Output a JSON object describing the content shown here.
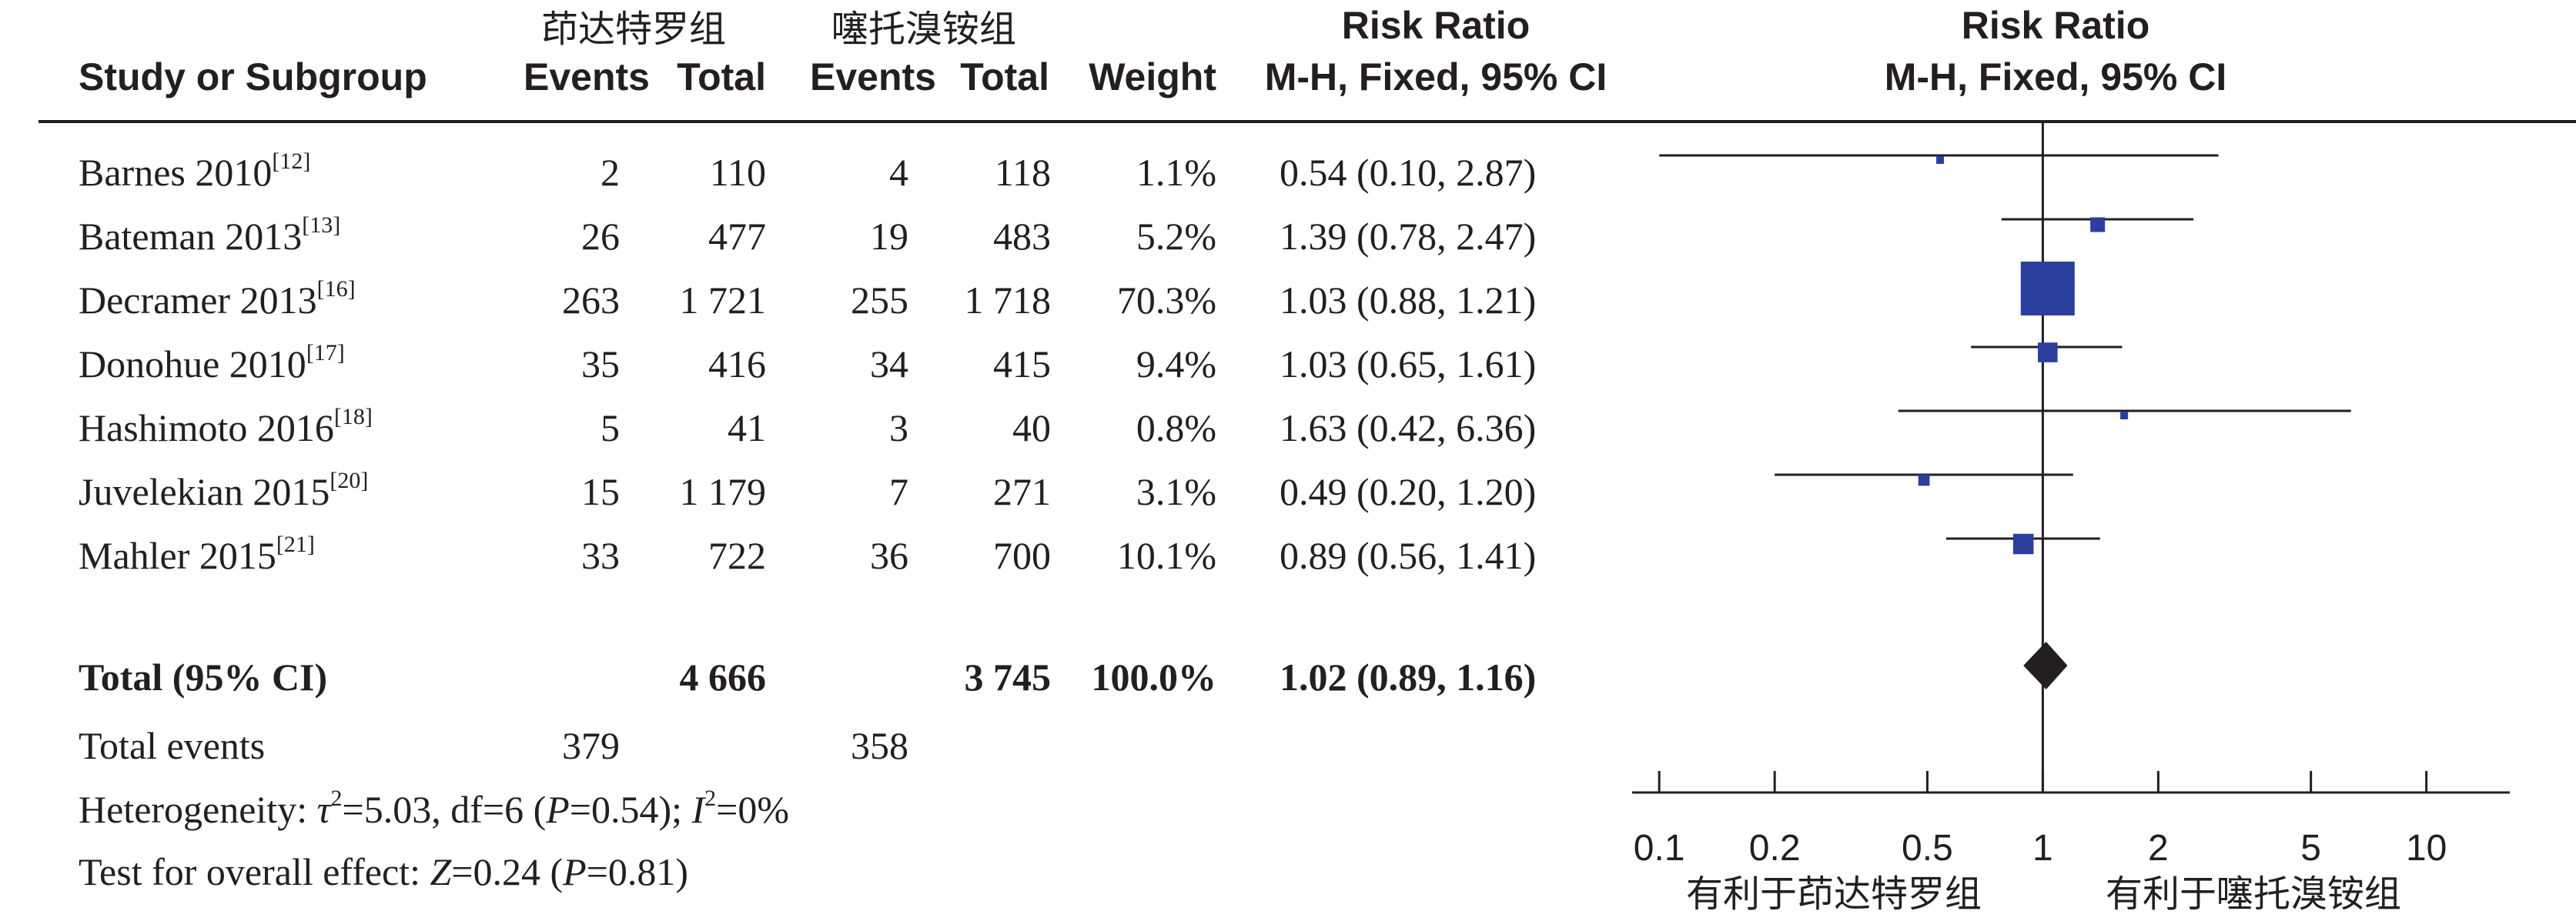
{
  "headers": {
    "study": "Study or Subgroup",
    "group1": "茚达特罗组",
    "group2": "噻托溴铵组",
    "events": "Events",
    "total": "Total",
    "weight": "Weight",
    "rr_title": "Risk Ratio",
    "rr_method": "M-H, Fixed, 95% CI",
    "plot_title": "Risk Ratio",
    "plot_method": "M-H, Fixed, 95% CI"
  },
  "studies": [
    {
      "name": "Barnes 2010",
      "ref": "[12]",
      "e1": "2",
      "n1": "110",
      "e2": "4",
      "n2": "118",
      "weight": "1.1%",
      "ci": "0.54 (0.10, 2.87)"
    },
    {
      "name": "Bateman  2013",
      "ref": "[13]",
      "e1": "26",
      "n1": "477",
      "e2": "19",
      "n2": "483",
      "weight": "5.2%",
      "ci": "1.39 (0.78, 2.47)"
    },
    {
      "name": "Decramer 2013",
      "ref": "[16]",
      "e1": "263",
      "n1": "1 721",
      "e2": "255",
      "n2": "1 718",
      "weight": "70.3%",
      "ci": "1.03 (0.88, 1.21)"
    },
    {
      "name": "Donohue  2010",
      "ref": "[17]",
      "e1": "35",
      "n1": "416",
      "e2": "34",
      "n2": "415",
      "weight": "9.4%",
      "ci": "1.03 (0.65, 1.61)"
    },
    {
      "name": "Hashimoto 2016",
      "ref": "[18]",
      "e1": "5",
      "n1": "41",
      "e2": "3",
      "n2": "40",
      "weight": "0.8%",
      "ci": "1.63 (0.42, 6.36)"
    },
    {
      "name": "Juvelekian 2015",
      "ref": "[20]",
      "e1": "15",
      "n1": "1 179",
      "e2": "7",
      "n2": "271",
      "weight": "3.1%",
      "ci": "0.49 (0.20, 1.20)"
    },
    {
      "name": "Mahler 2015",
      "ref": "[21]",
      "e1": "33",
      "n1": "722",
      "e2": "36",
      "n2": "700",
      "weight": "10.1%",
      "ci": "0.89 (0.56, 1.41)"
    }
  ],
  "total": {
    "label": "Total (95% CI)",
    "n1": "4 666",
    "n2": "3 745",
    "weight": "100.0%",
    "ci": "1.02 (0.89, 1.16)"
  },
  "total_events": {
    "label": "Total events",
    "e1": "379",
    "e2": "358"
  },
  "heterogeneity": {
    "prefix": "Heterogeneity: ",
    "tau": "τ",
    "tau_sup": "2",
    "tau_value": "=5.03, df=6 (",
    "p_label": "P",
    "p_value": "=0.54); ",
    "i_label": "I",
    "i_sup": "2",
    "i_value": "=0%"
  },
  "overall_effect": {
    "prefix": "Test for overall effect: ",
    "z_label": "Z",
    "z_value": "=0.24 (",
    "p_label": "P",
    "p_value": "=0.81)"
  },
  "favours": {
    "left": "有利于茚达特罗组",
    "right": "有利于噻托溴铵组"
  },
  "chart_data": {
    "type": "forest",
    "scale": "log",
    "xlim": [
      0.085,
      16.5
    ],
    "ticks": [
      0.1,
      0.2,
      0.5,
      1,
      2,
      5,
      10
    ],
    "tick_labels": [
      "0.1",
      "0.2",
      "0.5",
      "1",
      "2",
      "5",
      "10"
    ],
    "null_line": 1,
    "studies": [
      {
        "name": "Barnes 2010",
        "rr": 0.54,
        "lo": 0.1,
        "hi": 2.87,
        "weight": 1.1
      },
      {
        "name": "Bateman  2013",
        "rr": 1.39,
        "lo": 0.78,
        "hi": 2.47,
        "weight": 5.2
      },
      {
        "name": "Decramer 2013",
        "rr": 1.03,
        "lo": 0.88,
        "hi": 1.21,
        "weight": 70.3
      },
      {
        "name": "Donohue  2010",
        "rr": 1.03,
        "lo": 0.65,
        "hi": 1.61,
        "weight": 9.4
      },
      {
        "name": "Hashimoto 2016",
        "rr": 1.63,
        "lo": 0.42,
        "hi": 6.36,
        "weight": 0.8
      },
      {
        "name": "Juvelekian 2015",
        "rr": 0.49,
        "lo": 0.2,
        "hi": 1.2,
        "weight": 3.1
      },
      {
        "name": "Mahler 2015",
        "rr": 0.89,
        "lo": 0.56,
        "hi": 1.41,
        "weight": 10.1
      }
    ],
    "pooled": {
      "rr": 1.02,
      "lo": 0.89,
      "hi": 1.16
    },
    "colors": {
      "square": "#2a3f9e",
      "diamond": "#231f20",
      "line": "#231f20"
    }
  }
}
